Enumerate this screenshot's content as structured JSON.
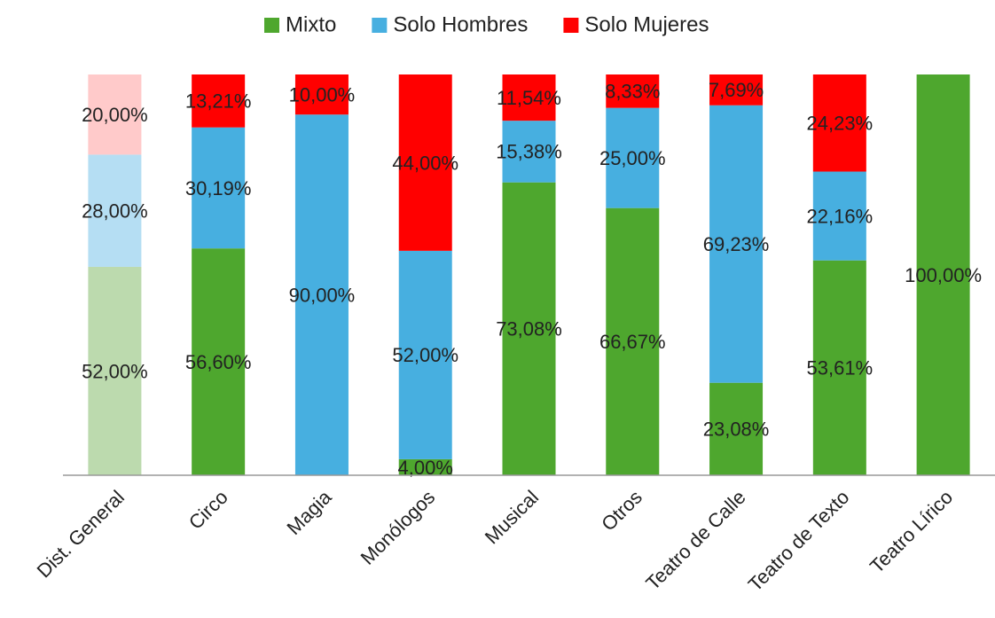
{
  "chart_data": {
    "type": "stacked_bar",
    "categories": [
      "Dist. General",
      "Circo",
      "Magia",
      "Monólogos",
      "Musical",
      "Otros",
      "Teatro de Calle",
      "Teatro de Texto",
      "Teatro Lírico"
    ],
    "series": [
      {
        "name": "Mixto",
        "color": "#4ea72e",
        "colors": [
          "#bcdaae",
          "#4ea72e",
          "#4ea72e",
          "#4ea72e",
          "#4ea72e",
          "#4ea72e",
          "#4ea72e",
          "#4ea72e",
          "#4ea72e"
        ],
        "values": [
          52,
          56.6,
          null,
          4,
          73.08,
          66.67,
          23.08,
          53.61,
          100
        ],
        "value_labels": [
          "52,00%",
          "56,60%",
          null,
          "4,00%",
          "73,08%",
          "66,67%",
          "23,08%",
          "53,61%",
          "100,00%"
        ]
      },
      {
        "name": "Solo Hombres",
        "color": "#47afe0",
        "colors": [
          "#b5def3",
          "#47afe0",
          "#47afe0",
          "#47afe0",
          "#47afe0",
          "#47afe0",
          "#47afe0",
          "#47afe0",
          "#47afe0"
        ],
        "values": [
          28,
          30.19,
          90,
          52,
          15.38,
          25,
          69.23,
          22.16,
          null
        ],
        "value_labels": [
          "28,00%",
          "30,19%",
          "90,00%",
          "52,00%",
          "15,38%",
          "25,00%",
          "69,23%",
          "22,16%",
          null
        ]
      },
      {
        "name": "Solo Mujeres",
        "color": "#ff0000",
        "colors": [
          "#ffcaca",
          "#ff0000",
          "#ff0000",
          "#ff0000",
          "#ff0000",
          "#ff0000",
          "#ff0000",
          "#ff0000",
          "#ff0000"
        ],
        "values": [
          20,
          13.21,
          10,
          44,
          11.54,
          8.33,
          7.69,
          24.23,
          null
        ],
        "value_labels": [
          "20,00%",
          "13,21%",
          "10,00%",
          "44,00%",
          "11,54%",
          "8,33%",
          "7,69%",
          "24,23%",
          null
        ]
      }
    ],
    "ylim": [
      0,
      100
    ],
    "legend": "top"
  }
}
